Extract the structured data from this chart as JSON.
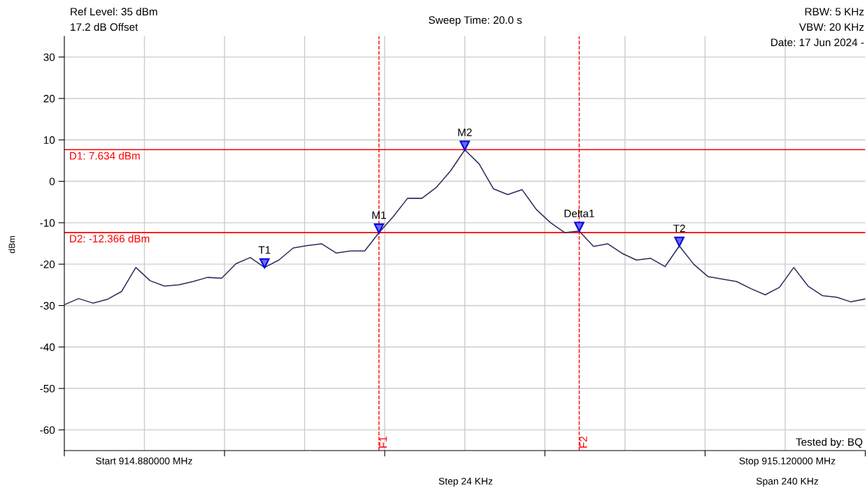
{
  "chart_data": {
    "type": "line",
    "title": "Sweep Time: 20.0 s",
    "ylabel": "dBm",
    "categories": [
      null,
      null,
      null,
      null,
      null,
      null,
      null,
      null,
      null,
      null,
      null,
      null,
      null,
      null,
      null,
      null,
      null,
      null,
      null,
      null,
      null,
      null,
      null,
      null,
      null,
      null,
      null,
      null,
      null,
      null,
      null,
      null,
      null,
      null,
      null,
      null,
      null,
      null,
      null,
      null,
      null,
      null,
      null,
      null,
      null,
      null,
      null,
      null,
      null,
      null,
      null,
      null,
      null,
      null,
      null,
      null,
      null
    ],
    "series": [
      {
        "color": "#2b2d5c",
        "values": [
          -29.8,
          -28.3,
          -29.4,
          -28.5,
          -26.6,
          -20.8,
          -24.0,
          -25.3,
          -25.0,
          -24.2,
          -23.2,
          -23.4,
          -19.9,
          -18.4,
          -20.8,
          -19.0,
          -16.1,
          -15.5,
          -15.1,
          -17.3,
          -16.8,
          -16.8,
          -12.4,
          -8.5,
          -4.1,
          -4.1,
          -1.5,
          2.5,
          7.6,
          4.2,
          -1.8,
          -3.2,
          -2.0,
          -6.8,
          -10.0,
          -12.4,
          -12.0,
          -15.7,
          -15.1,
          -17.4,
          -19.0,
          -18.6,
          -20.6,
          -15.6,
          -20.0,
          -23.0,
          -23.6,
          -24.2,
          -25.9,
          -27.4,
          -25.6,
          -20.8,
          -25.3,
          -27.6,
          -28.0,
          -29.1,
          -28.4
        ],
        "value_labels": [
          null,
          null,
          null,
          null,
          null,
          null,
          null,
          null,
          null,
          null,
          null,
          null,
          null,
          null,
          "T1",
          null,
          null,
          null,
          null,
          null,
          null,
          null,
          "M1",
          null,
          null,
          null,
          null,
          null,
          "M2",
          null,
          null,
          null,
          null,
          null,
          null,
          null,
          "Delta1",
          null,
          null,
          null,
          null,
          null,
          null,
          "T2",
          null,
          null,
          null,
          null,
          null,
          null,
          null,
          null,
          null,
          null,
          null,
          null,
          null
        ]
      }
    ],
    "ylim": [
      -65,
      35
    ],
    "yticks": [
      -60,
      -50,
      -40,
      -30,
      -20,
      -10,
      0,
      10,
      20,
      30
    ],
    "grid": true,
    "line_style": "solid",
    "ref_lines": [
      {
        "axis": "y",
        "value": 7.634,
        "label": "D1: 7.634 dBm",
        "color": "#ff0000",
        "line_style": "solid"
      },
      {
        "axis": "y",
        "value": -12.366,
        "label": "D2: -12.366 dBm",
        "color": "#ff0000",
        "line_style": "solid"
      }
    ],
    "annotations": [
      "Ref Level: 35 dBm",
      "17.2 dB Offset",
      "RBW: 5 KHz",
      "VBW: 20 KHz",
      "Date: 17 Jun 2024 -",
      "Tested by: BQ",
      "Start 914.880000 MHz",
      "Stop 915.120000 MHz",
      "Step 24 KHz",
      "Span 240 KHz",
      "F1",
      "F2"
    ]
  }
}
